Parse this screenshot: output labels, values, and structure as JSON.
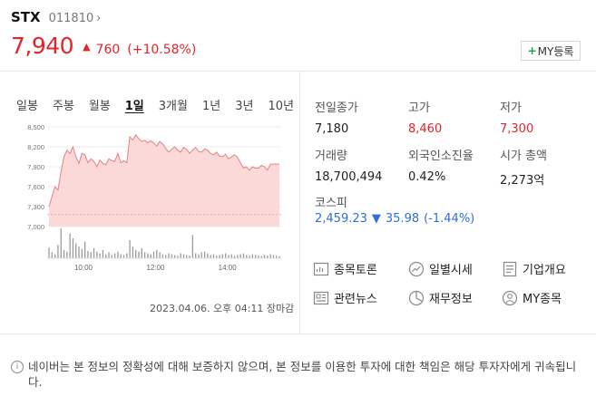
{
  "stock": {
    "name": "STX",
    "code": "011810",
    "price": "7,940",
    "change": "760",
    "rate": "(+10.58%)"
  },
  "my_button": "MY등록",
  "periods": [
    "일봉",
    "주봉",
    "월봉",
    "1일",
    "3개월",
    "1년",
    "3년",
    "10년"
  ],
  "active_period": "1일",
  "chart_timestamp": "2023.04.06. 오후 04:11 장마감",
  "info": {
    "prev_close": {
      "label": "전일종가",
      "value": "7,180"
    },
    "high": {
      "label": "고가",
      "value": "8,460"
    },
    "low": {
      "label": "저가",
      "value": "7,300"
    },
    "volume": {
      "label": "거래량",
      "value": "18,700,494"
    },
    "foreign": {
      "label": "외국인소진율",
      "value": "0.42%"
    },
    "market_cap": {
      "label": "시가 총액",
      "value": "2,273억"
    }
  },
  "kospi": {
    "label": "코스피",
    "value": "2,459.23",
    "change": "35.98",
    "rate": "(-1.44%)"
  },
  "links": {
    "discussion": "종목토론",
    "daily": "일별시세",
    "company": "기업개요",
    "news": "관련뉴스",
    "finance": "재무정보",
    "my": "MY종목"
  },
  "notice": "네이버는 본 정보의 정확성에 대해 보증하지 않으며, 본 정보를 이용한 투자에 대한 책임은 해당 투자자에게 귀속됩니다.",
  "colors": {
    "up": "#e5242a",
    "down": "#2f6ee0",
    "accent": "#1aa34a"
  },
  "chart_data": {
    "type": "area",
    "x_ticks": [
      "10:00",
      "12:00",
      "14:00"
    ],
    "y_ticks": [
      "8,500",
      "8,200",
      "7,900",
      "7,600",
      "7,300",
      "7,000"
    ],
    "ylim": [
      7000,
      8500
    ],
    "baseline": 7180,
    "price": [
      7300,
      7450,
      7600,
      7550,
      7820,
      8050,
      8150,
      8100,
      8200,
      8050,
      7950,
      8100,
      8080,
      7960,
      8020,
      7980,
      7900,
      8000,
      7950,
      7930,
      8020,
      7990,
      7980,
      8100,
      7960,
      7990,
      7960,
      8350,
      8300,
      8380,
      8320,
      8280,
      8300,
      8260,
      8290,
      8260,
      8210,
      8280,
      8240,
      8180,
      8120,
      8160,
      8200,
      8150,
      8120,
      8190,
      8160,
      8100,
      8150,
      8190,
      8130,
      8120,
      8170,
      8150,
      8100,
      8080,
      8120,
      8060,
      8050,
      8090,
      8020,
      8050,
      8080,
      8040,
      7960,
      7880,
      7900,
      7850,
      7900,
      7880,
      7880,
      7920,
      7900,
      7850,
      7940,
      7940,
      7940,
      7940
    ],
    "volume": [
      32,
      18,
      12,
      40,
      90,
      25,
      20,
      75,
      60,
      45,
      35,
      28,
      50,
      22,
      18,
      30,
      20,
      15,
      25,
      12,
      18,
      10,
      15,
      20,
      12,
      10,
      15,
      55,
      35,
      25,
      20,
      30,
      18,
      15,
      12,
      20,
      25,
      18,
      12,
      10,
      15,
      12,
      10,
      8,
      15,
      12,
      10,
      8,
      70,
      15,
      12,
      18,
      20,
      15,
      10,
      12,
      8,
      10,
      12,
      15,
      10,
      12,
      8,
      10,
      12,
      15,
      10,
      8,
      12,
      10,
      8,
      6,
      10,
      8,
      12,
      10,
      8,
      6
    ]
  }
}
